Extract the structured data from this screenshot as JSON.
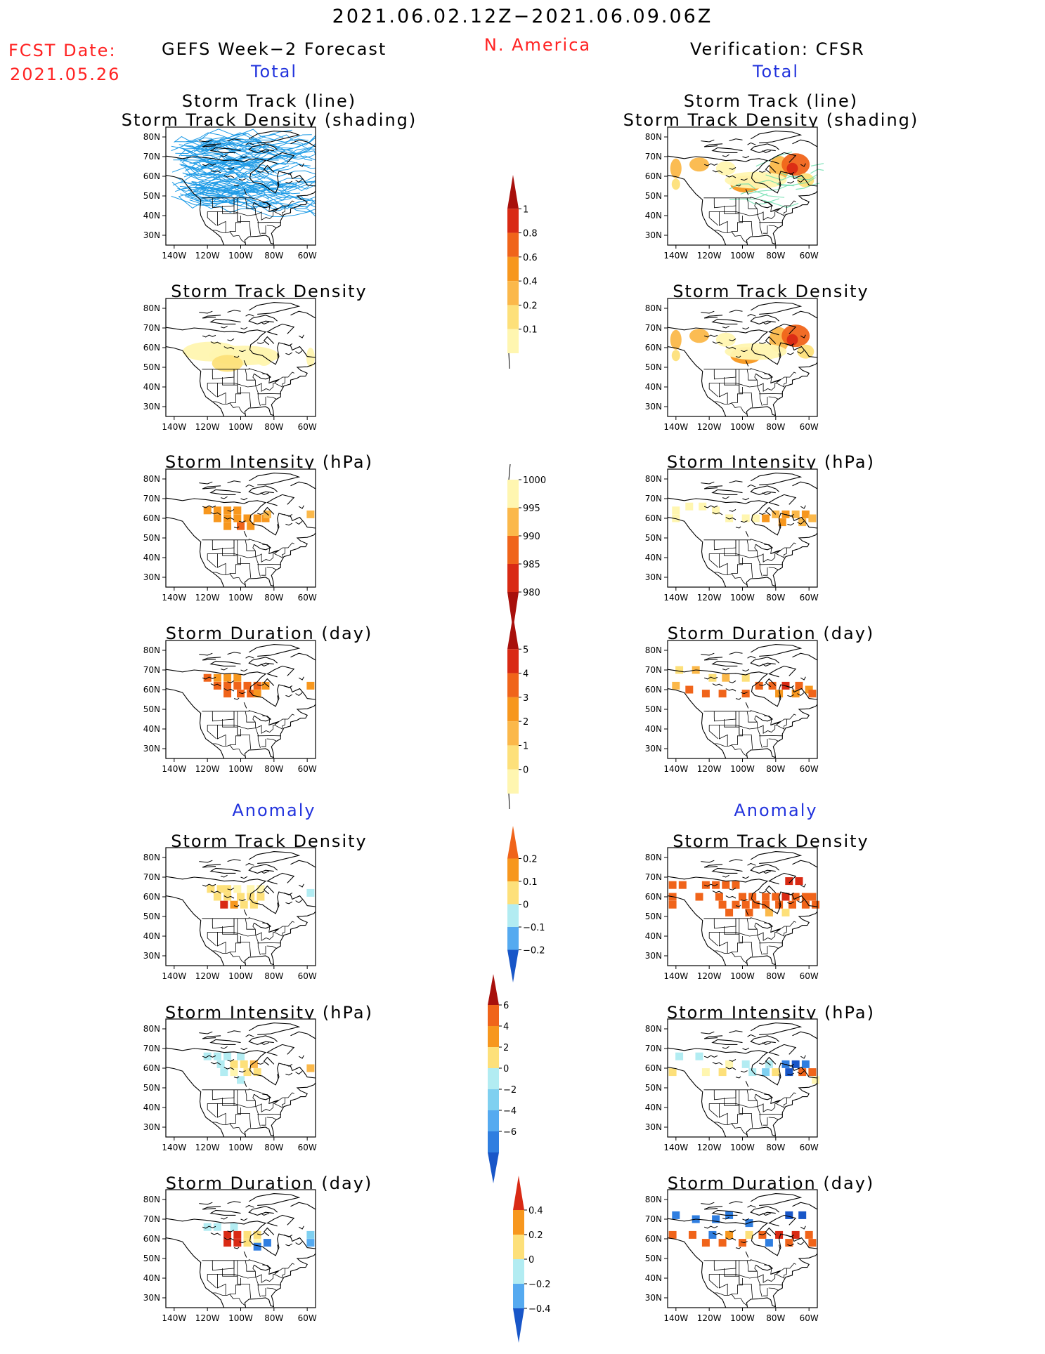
{
  "header": {
    "period": "2021.06.02.12Z−2021.06.09.06Z",
    "region": "N. America",
    "fcst_label": "FCST Date:",
    "fcst_date": "2021.05.26",
    "left_title": "GEFS Week−2 Forecast",
    "right_title": "Verification: CFSR",
    "total_label": "Total",
    "anomaly_label": "Anomaly"
  },
  "panel_titles": {
    "track_line": "Storm Track (line)",
    "track_shading": "Storm Track Density (shading)",
    "density": "Storm Track Density",
    "intensity": "Storm Intensity (hPa)",
    "duration": "Storm Duration (day)"
  },
  "axes": {
    "lat_labels": [
      "80N",
      "70N",
      "60N",
      "50N",
      "40N",
      "30N"
    ],
    "lon_labels": [
      "140W",
      "120W",
      "100W",
      "80W",
      "60W"
    ]
  },
  "colorbars": {
    "density_total": [
      "1",
      "0.8",
      "0.6",
      "0.4",
      "0.2",
      "0.1"
    ],
    "intensity_total": [
      "1000",
      "995",
      "990",
      "985",
      "980"
    ],
    "duration_total": [
      "5",
      "4",
      "3",
      "2",
      "1",
      "0"
    ],
    "density_anom": [
      "0.2",
      "0.1",
      "0",
      "−0.1",
      "−0.2"
    ],
    "intensity_anom": [
      "6",
      "4",
      "2",
      "0",
      "−2",
      "−4",
      "−6"
    ],
    "duration_anom": [
      "0.4",
      "0.2",
      "0",
      "−0.2",
      "−0.4"
    ]
  },
  "colors": {
    "red_text": "#ff2222",
    "blue_text": "#2233dd",
    "track_line": "#1e9be6",
    "warm": [
      "#fff6b0",
      "#fde07a",
      "#fbb84a",
      "#f7971e",
      "#f0641a",
      "#d92a14",
      "#a8100c"
    ],
    "cool": [
      "#b2ecf2",
      "#7fd0f0",
      "#55aaf0",
      "#2f7ee0",
      "#1856c8"
    ]
  },
  "chart_data": {
    "type": "map-panels",
    "region": "North America",
    "lat_range_deg": [
      25,
      85
    ],
    "lon_range_deg": [
      -145,
      -55
    ],
    "columns": [
      "GEFS Week−2 Forecast",
      "Verification: CFSR"
    ],
    "rows": [
      "Storm Track (line) / Storm Track Density (shading)",
      "Storm Track Density",
      "Storm Intensity (hPa)",
      "Storm Duration (day)",
      "Anomaly Storm Track Density",
      "Anomaly Storm Intensity (hPa)",
      "Anomaly Storm Duration (day)"
    ]
  }
}
